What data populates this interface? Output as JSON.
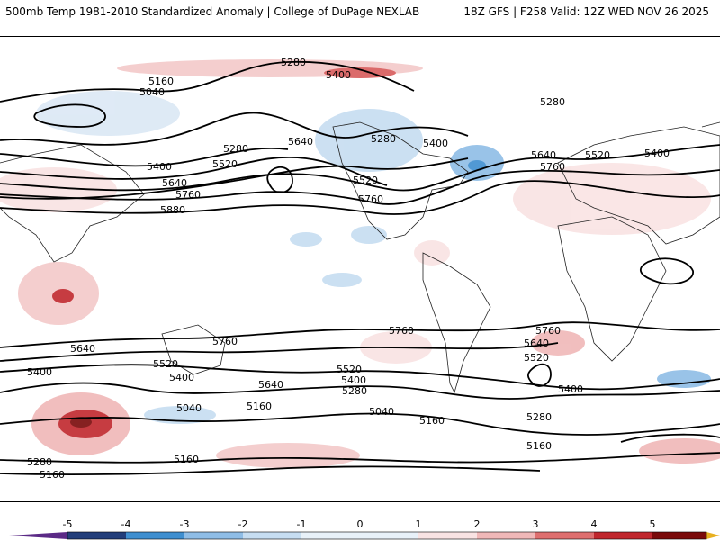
{
  "header": {
    "left_title": "500mb Temp 1981-2010 Standardized Anomaly | College of DuPage NEXLAB",
    "right_title": "18Z GFS | F258 Valid: 12Z WED NOV 26 2025"
  },
  "contour_labels": [
    "5280",
    "5400",
    "5160",
    "5040",
    "5640",
    "5280",
    "5520",
    "5400",
    "5640",
    "5760",
    "5880",
    "5280",
    "5400",
    "5520",
    "5760",
    "5640",
    "5520",
    "5760",
    "5400",
    "5280",
    "5640",
    "5400",
    "5520",
    "5400",
    "5040",
    "5160",
    "5280",
    "5160",
    "5760",
    "5640",
    "5520",
    "5400",
    "5280",
    "5040",
    "5160",
    "5160",
    "5760",
    "5640",
    "5520",
    "5400",
    "5280",
    "5160",
    "5760"
  ],
  "legend": {
    "ticks": [
      "-5",
      "-4",
      "-3",
      "-2",
      "-1",
      "0",
      "1",
      "2",
      "3",
      "4",
      "5"
    ],
    "colors": [
      "#5b2a86",
      "#233e7a",
      "#3f8fd0",
      "#8fbde6",
      "#c6ddf1",
      "#e8f1f9",
      "#f9e3e3",
      "#f0b8b8",
      "#de6f6f",
      "#c0272d",
      "#7a0a0a",
      "#e8b020"
    ]
  }
}
